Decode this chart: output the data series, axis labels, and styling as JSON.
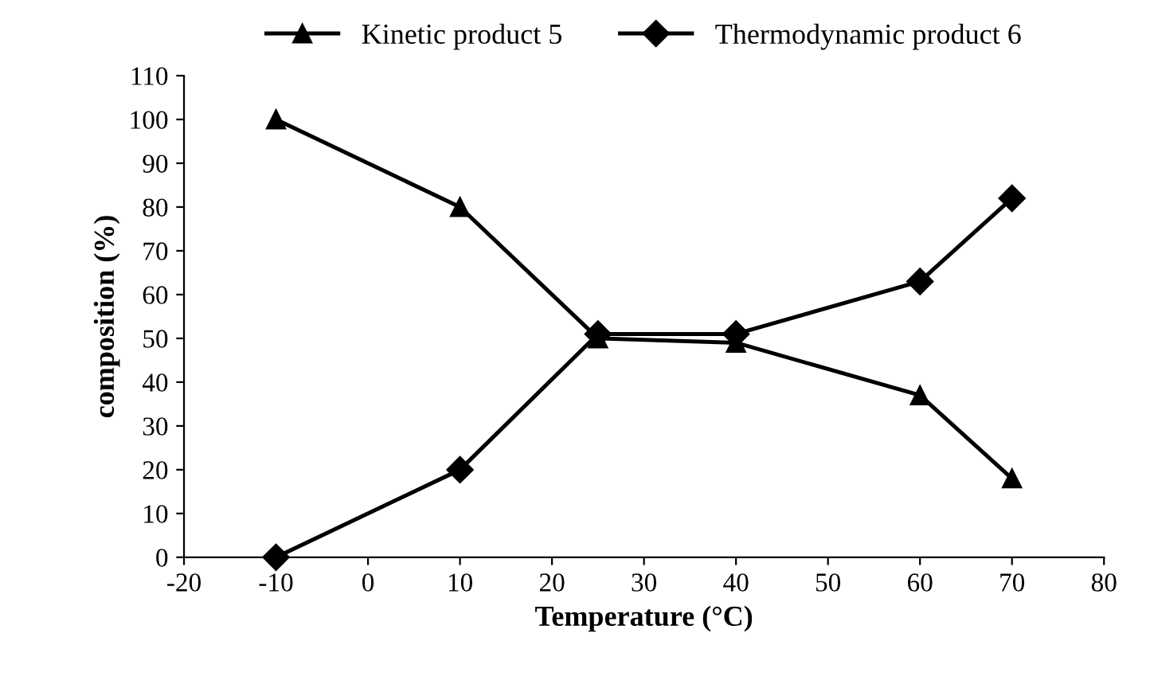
{
  "chart_data": {
    "type": "line",
    "xlabel": "Temperature (°C)",
    "ylabel": "composition (%)",
    "x": [
      -10,
      10,
      25,
      40,
      60,
      70
    ],
    "series": [
      {
        "name": "Kinetic product 5",
        "color": "#000000",
        "marker": "triangle",
        "values": [
          100,
          80,
          50,
          49,
          37,
          18
        ]
      },
      {
        "name": "Thermodynamic product 6",
        "color": "#000000",
        "marker": "diamond",
        "values": [
          0,
          20,
          51,
          51,
          63,
          82
        ]
      }
    ],
    "xlim": [
      -20,
      80
    ],
    "xticks": [
      -20,
      -10,
      0,
      10,
      20,
      30,
      40,
      50,
      60,
      70,
      80
    ],
    "ylim": [
      0,
      110
    ],
    "yticks": [
      0,
      10,
      20,
      30,
      40,
      50,
      60,
      70,
      80,
      90,
      100,
      110
    ],
    "legend": "top",
    "line_style": "solid"
  }
}
